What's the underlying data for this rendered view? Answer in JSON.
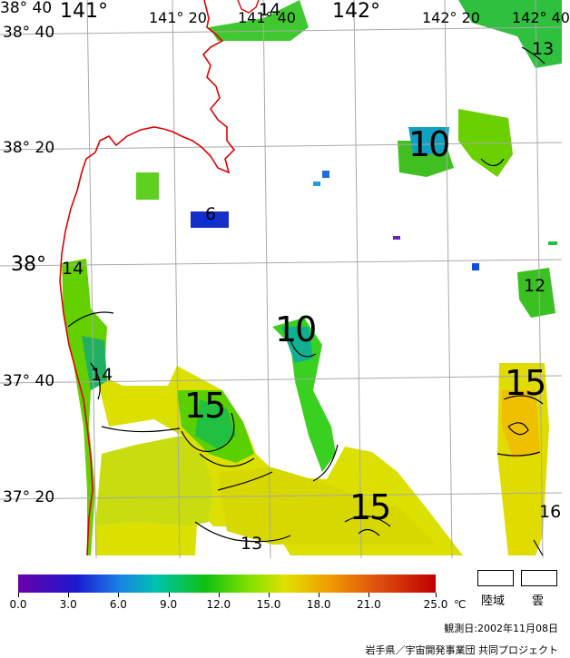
{
  "labels": {
    "lon_141": "141°",
    "lon_141_20": "141° 20",
    "lon_141_40": "141° 40",
    "lon_142": "142°",
    "lon_142_20": "142° 20",
    "lon_142_40": "142° 40",
    "lat_38_40": "38° 40",
    "lat_38_20": "38° 20",
    "lat_38": "38°",
    "lat_37_40": "37° 40",
    "lat_37_20": "37° 20"
  },
  "contours": {
    "c14_top": "14",
    "c13_topright": "13",
    "c10_a": "10",
    "c6": "6",
    "c14_left": "14",
    "c12": "12",
    "c10_b": "10",
    "c14_coast": "14",
    "c15_a": "15",
    "c15_b": "15",
    "c15_c": "15",
    "c16": "16",
    "c13_bottom": "13"
  },
  "colorbar": {
    "ticks": [
      "0.0",
      "3.0",
      "6.0",
      "9.0",
      "12.0",
      "15.0",
      "18.0",
      "21.0",
      "25.0"
    ],
    "unit": "℃",
    "min": 0,
    "max": 25,
    "colors": [
      "#6a00a8",
      "#1a1ad0",
      "#1a7fe6",
      "#00c2b0",
      "#10c010",
      "#7ee000",
      "#e0e000",
      "#f0a000",
      "#e05010",
      "#c00000"
    ]
  },
  "legend": {
    "land": "陸域",
    "cloud": "雲"
  },
  "footer": {
    "date": "観測日:2002年11月08日",
    "credit": "岩手県／宇宙開発事業団 共同プロジェクト"
  },
  "colors": {
    "coastline": "#e00000",
    "grid": "#a8a8a8",
    "contour": "#000000"
  }
}
